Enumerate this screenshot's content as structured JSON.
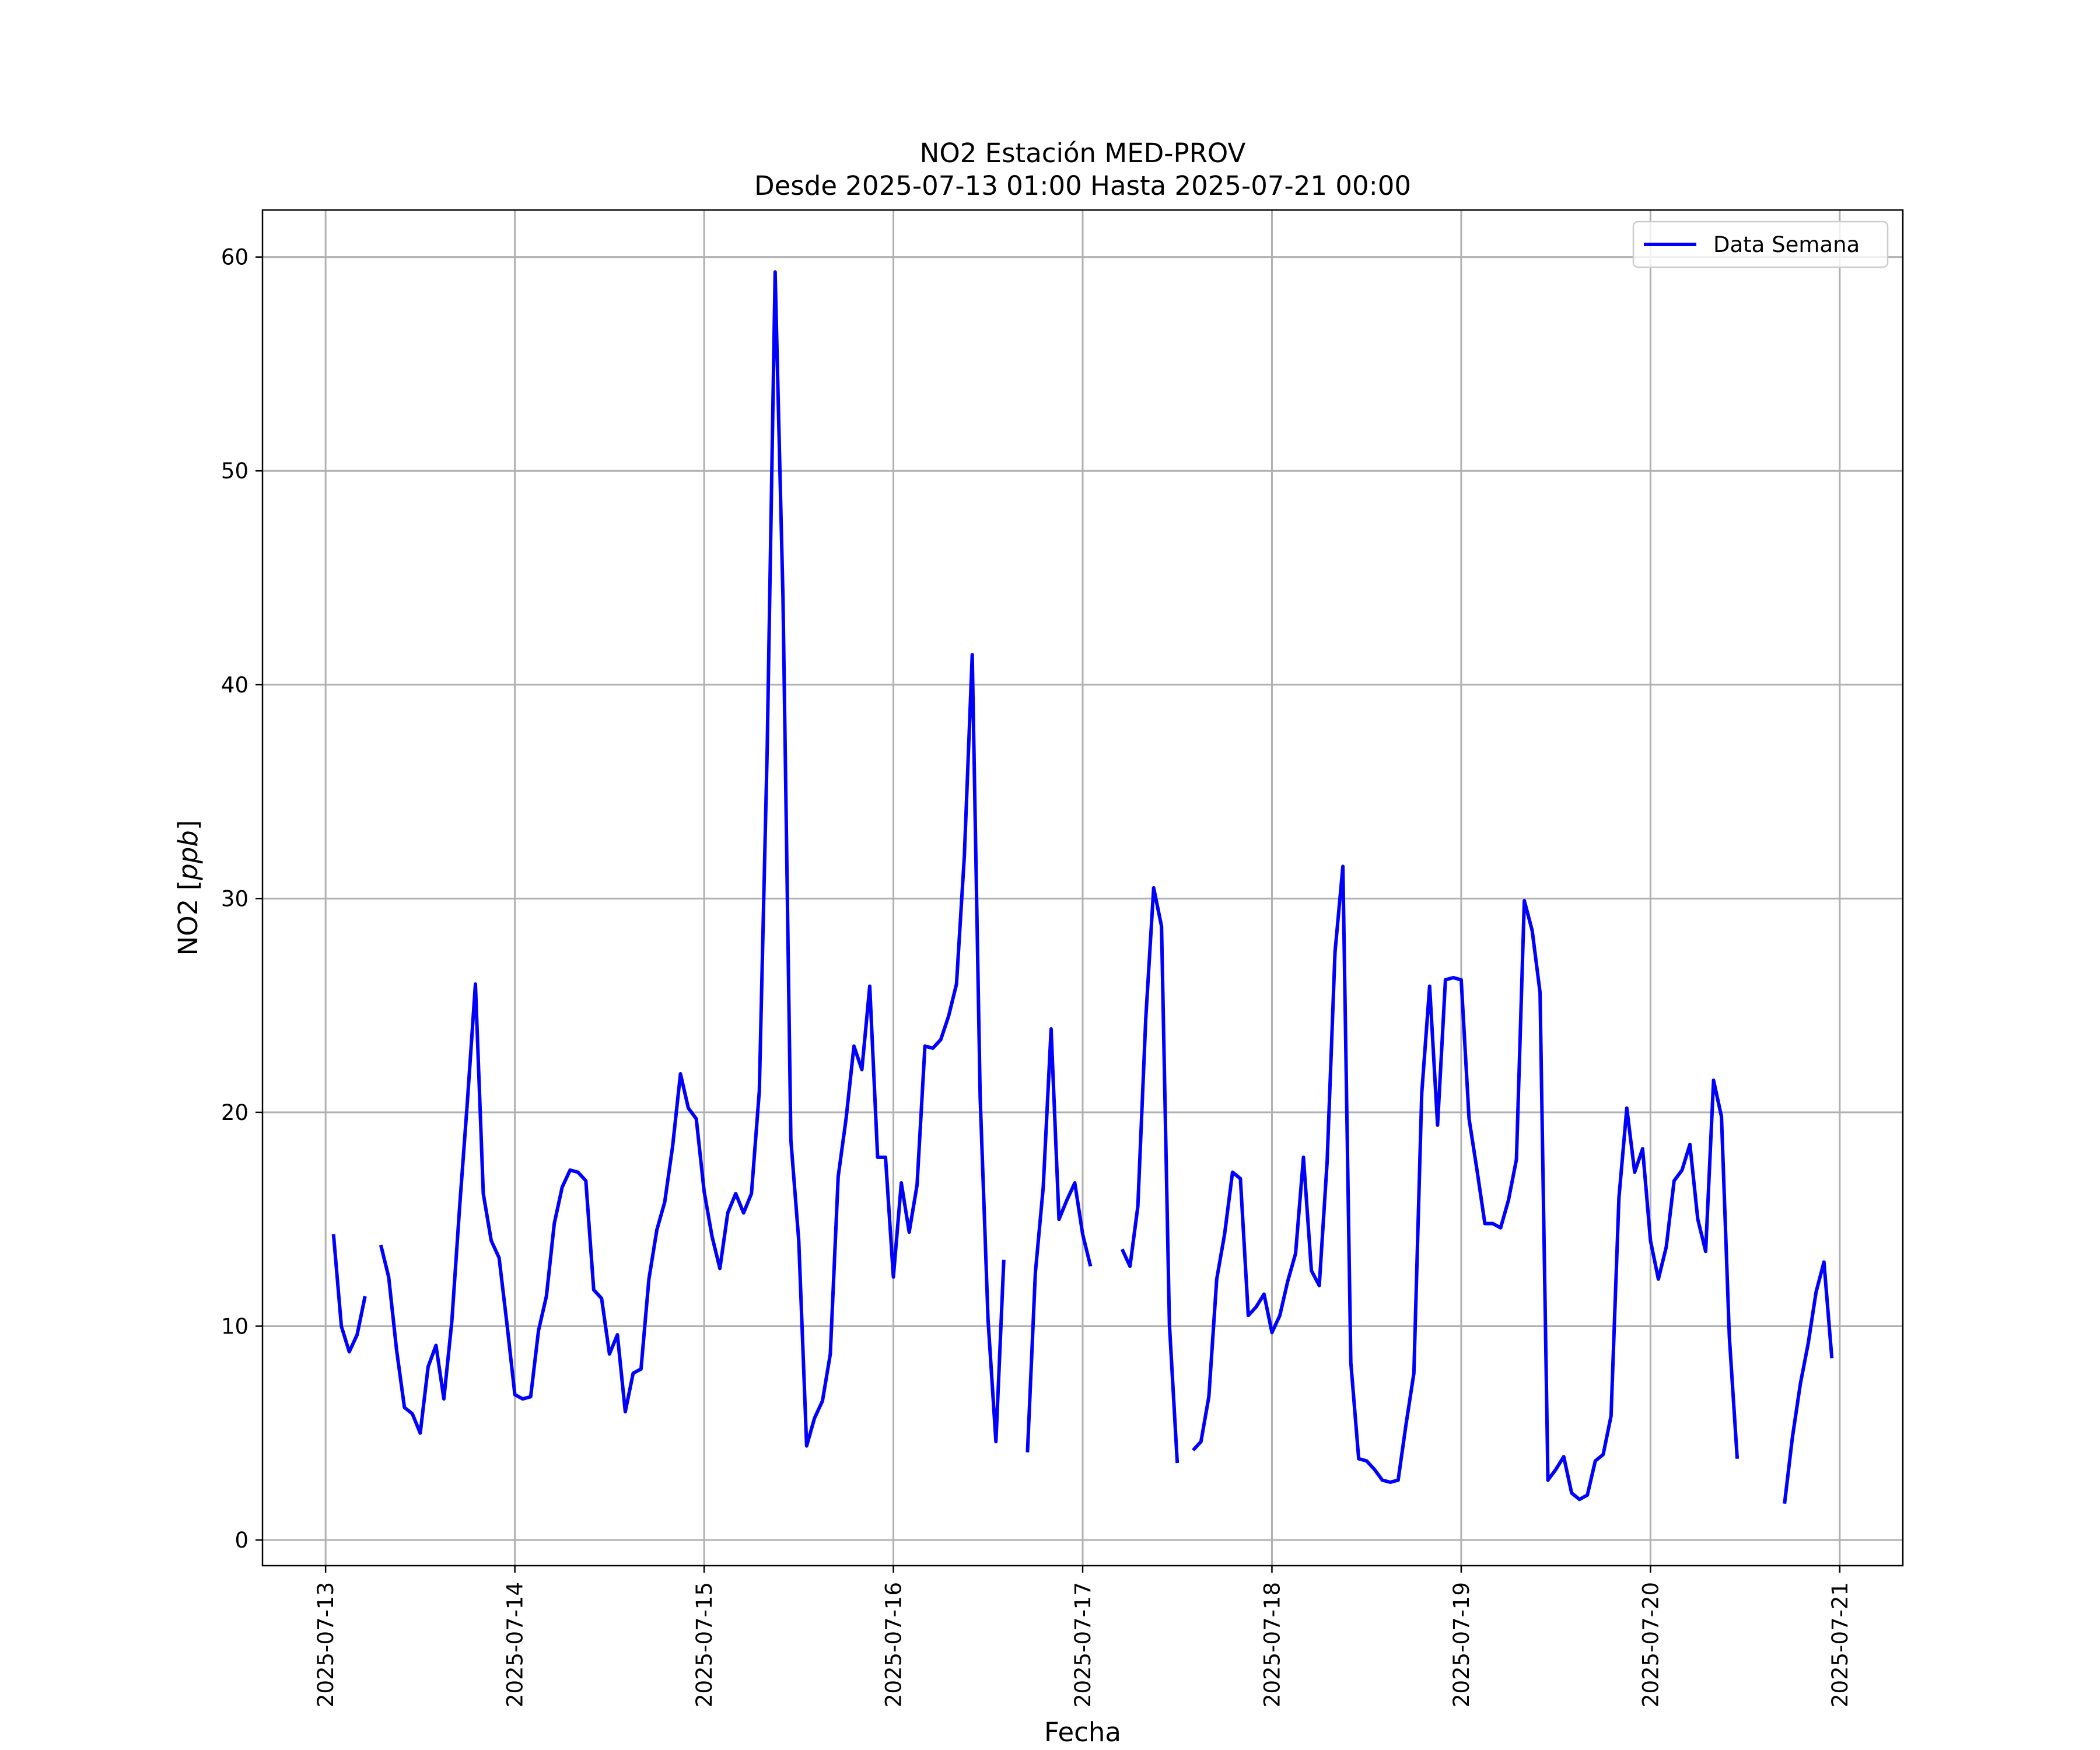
{
  "chart_data": {
    "type": "line",
    "title": "NO2 Estación MED-PROV",
    "subtitle": "Desde 2025-07-13 01:00 Hasta 2025-07-21 00:00",
    "xlabel": "Fecha",
    "ylabel_text": "NO2 [",
    "ylabel_unit": "ppb",
    "ylabel_close": "]",
    "xlim": [
      "2025-07-12 16:00",
      "2025-07-21 08:00"
    ],
    "ylim": [
      -1.2,
      62.2
    ],
    "x_ticks": [
      "2025-07-13",
      "2025-07-14",
      "2025-07-15",
      "2025-07-16",
      "2025-07-17",
      "2025-07-18",
      "2025-07-19",
      "2025-07-20",
      "2025-07-21"
    ],
    "y_ticks": [
      0,
      10,
      20,
      30,
      40,
      50,
      60
    ],
    "grid": true,
    "legend_position": "upper right",
    "series": [
      {
        "name": "Data Semana",
        "color": "#0000ff",
        "points": [
          [
            "2025-07-13 01:00",
            14.3
          ],
          [
            "2025-07-13 02:00",
            10.0
          ],
          [
            "2025-07-13 03:00",
            8.8
          ],
          [
            "2025-07-13 04:00",
            9.6
          ],
          [
            "2025-07-13 05:00",
            11.4
          ],
          [
            "2025-07-13 06:00",
            null
          ],
          [
            "2025-07-13 07:00",
            13.8
          ],
          [
            "2025-07-13 08:00",
            12.3
          ],
          [
            "2025-07-13 09:00",
            8.9
          ],
          [
            "2025-07-13 10:00",
            6.2
          ],
          [
            "2025-07-13 11:00",
            5.9
          ],
          [
            "2025-07-13 12:00",
            5.0
          ],
          [
            "2025-07-13 13:00",
            8.1
          ],
          [
            "2025-07-13 14:00",
            9.1
          ],
          [
            "2025-07-13 15:00",
            6.6
          ],
          [
            "2025-07-13 16:00",
            10.2
          ],
          [
            "2025-07-13 17:00",
            15.6
          ],
          [
            "2025-07-13 18:00",
            20.6
          ],
          [
            "2025-07-13 19:00",
            26.0
          ],
          [
            "2025-07-13 20:00",
            16.2
          ],
          [
            "2025-07-13 21:00",
            14.0
          ],
          [
            "2025-07-13 22:00",
            13.2
          ],
          [
            "2025-07-13 23:00",
            10.1
          ],
          [
            "2025-07-14 00:00",
            6.8
          ],
          [
            "2025-07-14 01:00",
            6.6
          ],
          [
            "2025-07-14 02:00",
            6.7
          ],
          [
            "2025-07-14 03:00",
            9.8
          ],
          [
            "2025-07-14 04:00",
            11.4
          ],
          [
            "2025-07-14 05:00",
            14.8
          ],
          [
            "2025-07-14 06:00",
            16.5
          ],
          [
            "2025-07-14 07:00",
            17.3
          ],
          [
            "2025-07-14 08:00",
            17.2
          ],
          [
            "2025-07-14 09:00",
            16.8
          ],
          [
            "2025-07-14 10:00",
            11.7
          ],
          [
            "2025-07-14 11:00",
            11.3
          ],
          [
            "2025-07-14 12:00",
            8.7
          ],
          [
            "2025-07-14 13:00",
            9.6
          ],
          [
            "2025-07-14 14:00",
            6.0
          ],
          [
            "2025-07-14 15:00",
            7.8
          ],
          [
            "2025-07-14 16:00",
            8.0
          ],
          [
            "2025-07-14 17:00",
            12.2
          ],
          [
            "2025-07-14 18:00",
            14.5
          ],
          [
            "2025-07-14 19:00",
            15.8
          ],
          [
            "2025-07-14 20:00",
            18.4
          ],
          [
            "2025-07-14 21:00",
            21.8
          ],
          [
            "2025-07-14 22:00",
            20.2
          ],
          [
            "2025-07-14 23:00",
            19.7
          ],
          [
            "2025-07-15 00:00",
            16.3
          ],
          [
            "2025-07-15 01:00",
            14.2
          ],
          [
            "2025-07-15 02:00",
            12.7
          ],
          [
            "2025-07-15 03:00",
            15.3
          ],
          [
            "2025-07-15 04:00",
            16.2
          ],
          [
            "2025-07-15 05:00",
            15.3
          ],
          [
            "2025-07-15 06:00",
            16.2
          ],
          [
            "2025-07-15 07:00",
            21.0
          ],
          [
            "2025-07-15 08:00",
            37.0
          ],
          [
            "2025-07-15 09:00",
            59.3
          ],
          [
            "2025-07-15 10:00",
            44.0
          ],
          [
            "2025-07-15 11:00",
            18.7
          ],
          [
            "2025-07-15 12:00",
            14.0
          ],
          [
            "2025-07-15 13:00",
            4.4
          ],
          [
            "2025-07-15 14:00",
            5.7
          ],
          [
            "2025-07-15 15:00",
            6.5
          ],
          [
            "2025-07-15 16:00",
            8.7
          ],
          [
            "2025-07-15 17:00",
            17.0
          ],
          [
            "2025-07-15 18:00",
            19.7
          ],
          [
            "2025-07-15 19:00",
            23.1
          ],
          [
            "2025-07-15 20:00",
            22.0
          ],
          [
            "2025-07-15 21:00",
            25.9
          ],
          [
            "2025-07-15 22:00",
            17.9
          ],
          [
            "2025-07-15 23:00",
            17.9
          ],
          [
            "2025-07-16 00:00",
            12.3
          ],
          [
            "2025-07-16 01:00",
            16.7
          ],
          [
            "2025-07-16 02:00",
            14.4
          ],
          [
            "2025-07-16 03:00",
            16.6
          ],
          [
            "2025-07-16 04:00",
            23.1
          ],
          [
            "2025-07-16 05:00",
            23.0
          ],
          [
            "2025-07-16 06:00",
            23.4
          ],
          [
            "2025-07-16 07:00",
            24.5
          ],
          [
            "2025-07-16 08:00",
            26.0
          ],
          [
            "2025-07-16 09:00",
            32.0
          ],
          [
            "2025-07-16 10:00",
            41.4
          ],
          [
            "2025-07-16 11:00",
            20.7
          ],
          [
            "2025-07-16 12:00",
            10.3
          ],
          [
            "2025-07-16 13:00",
            4.6
          ],
          [
            "2025-07-16 14:00",
            13.1
          ],
          [
            "2025-07-16 15:00",
            null
          ],
          [
            "2025-07-16 16:00",
            null
          ],
          [
            "2025-07-16 17:00",
            4.1
          ],
          [
            "2025-07-16 18:00",
            12.5
          ],
          [
            "2025-07-16 19:00",
            16.5
          ],
          [
            "2025-07-16 20:00",
            23.9
          ],
          [
            "2025-07-16 21:00",
            15.0
          ],
          [
            "2025-07-16 22:00",
            15.9
          ],
          [
            "2025-07-16 23:00",
            16.7
          ],
          [
            "2025-07-17 00:00",
            14.3
          ],
          [
            "2025-07-17 01:00",
            12.8
          ],
          [
            "2025-07-17 02:00",
            null
          ],
          [
            "2025-07-17 03:00",
            null
          ],
          [
            "2025-07-17 04:00",
            null
          ],
          [
            "2025-07-17 05:00",
            13.6
          ],
          [
            "2025-07-17 06:00",
            12.8
          ],
          [
            "2025-07-17 07:00",
            15.6
          ],
          [
            "2025-07-17 08:00",
            24.4
          ],
          [
            "2025-07-17 09:00",
            30.5
          ],
          [
            "2025-07-17 10:00",
            28.7
          ],
          [
            "2025-07-17 11:00",
            10.1
          ],
          [
            "2025-07-17 12:00",
            3.6
          ],
          [
            "2025-07-17 13:00",
            null
          ],
          [
            "2025-07-17 14:00",
            4.2
          ],
          [
            "2025-07-17 15:00",
            4.6
          ],
          [
            "2025-07-17 16:00",
            6.7
          ],
          [
            "2025-07-17 17:00",
            12.2
          ],
          [
            "2025-07-17 18:00",
            14.3
          ],
          [
            "2025-07-17 19:00",
            17.2
          ],
          [
            "2025-07-17 20:00",
            16.9
          ],
          [
            "2025-07-17 21:00",
            10.5
          ],
          [
            "2025-07-17 22:00",
            10.9
          ],
          [
            "2025-07-17 23:00",
            11.5
          ],
          [
            "2025-07-18 00:00",
            9.7
          ],
          [
            "2025-07-18 01:00",
            10.5
          ],
          [
            "2025-07-18 02:00",
            12.1
          ],
          [
            "2025-07-18 03:00",
            13.4
          ],
          [
            "2025-07-18 04:00",
            17.9
          ],
          [
            "2025-07-18 05:00",
            12.6
          ],
          [
            "2025-07-18 06:00",
            11.9
          ],
          [
            "2025-07-18 07:00",
            17.7
          ],
          [
            "2025-07-18 08:00",
            27.5
          ],
          [
            "2025-07-18 09:00",
            31.5
          ],
          [
            "2025-07-18 10:00",
            8.3
          ],
          [
            "2025-07-18 11:00",
            3.8
          ],
          [
            "2025-07-18 12:00",
            3.7
          ],
          [
            "2025-07-18 13:00",
            3.3
          ],
          [
            "2025-07-18 14:00",
            2.8
          ],
          [
            "2025-07-18 15:00",
            2.7
          ],
          [
            "2025-07-18 16:00",
            2.8
          ],
          [
            "2025-07-18 17:00",
            5.4
          ],
          [
            "2025-07-18 18:00",
            7.8
          ],
          [
            "2025-07-18 19:00",
            20.9
          ],
          [
            "2025-07-18 20:00",
            25.9
          ],
          [
            "2025-07-18 21:00",
            19.4
          ],
          [
            "2025-07-18 22:00",
            26.2
          ],
          [
            "2025-07-18 23:00",
            26.3
          ],
          [
            "2025-07-19 00:00",
            26.2
          ],
          [
            "2025-07-19 01:00",
            19.7
          ],
          [
            "2025-07-19 02:00",
            17.3
          ],
          [
            "2025-07-19 03:00",
            14.8
          ],
          [
            "2025-07-19 04:00",
            14.8
          ],
          [
            "2025-07-19 05:00",
            14.6
          ],
          [
            "2025-07-19 06:00",
            15.9
          ],
          [
            "2025-07-19 07:00",
            17.8
          ],
          [
            "2025-07-19 08:00",
            29.9
          ],
          [
            "2025-07-19 09:00",
            28.5
          ],
          [
            "2025-07-19 10:00",
            25.6
          ],
          [
            "2025-07-19 11:00",
            2.8
          ],
          [
            "2025-07-19 12:00",
            3.3
          ],
          [
            "2025-07-19 13:00",
            3.9
          ],
          [
            "2025-07-19 14:00",
            2.2
          ],
          [
            "2025-07-19 15:00",
            1.9
          ],
          [
            "2025-07-19 16:00",
            2.1
          ],
          [
            "2025-07-19 17:00",
            3.7
          ],
          [
            "2025-07-19 18:00",
            4.0
          ],
          [
            "2025-07-19 19:00",
            5.8
          ],
          [
            "2025-07-19 20:00",
            16.0
          ],
          [
            "2025-07-19 21:00",
            20.2
          ],
          [
            "2025-07-19 22:00",
            17.2
          ],
          [
            "2025-07-19 23:00",
            18.3
          ],
          [
            "2025-07-20 00:00",
            14.0
          ],
          [
            "2025-07-20 01:00",
            12.2
          ],
          [
            "2025-07-20 02:00",
            13.7
          ],
          [
            "2025-07-20 03:00",
            16.8
          ],
          [
            "2025-07-20 04:00",
            17.3
          ],
          [
            "2025-07-20 05:00",
            18.5
          ],
          [
            "2025-07-20 06:00",
            15.0
          ],
          [
            "2025-07-20 07:00",
            13.5
          ],
          [
            "2025-07-20 08:00",
            21.5
          ],
          [
            "2025-07-20 09:00",
            19.8
          ],
          [
            "2025-07-20 10:00",
            9.5
          ],
          [
            "2025-07-20 11:00",
            3.8
          ],
          [
            "2025-07-20 12:00",
            null
          ],
          [
            "2025-07-20 13:00",
            null
          ],
          [
            "2025-07-20 14:00",
            null
          ],
          [
            "2025-07-20 15:00",
            null
          ],
          [
            "2025-07-20 16:00",
            null
          ],
          [
            "2025-07-20 17:00",
            1.7
          ],
          [
            "2025-07-20 18:00",
            4.8
          ],
          [
            "2025-07-20 19:00",
            7.3
          ],
          [
            "2025-07-20 20:00",
            9.2
          ],
          [
            "2025-07-20 21:00",
            11.6
          ],
          [
            "2025-07-20 22:00",
            13.0
          ],
          [
            "2025-07-20 23:00",
            8.5
          ]
        ]
      }
    ]
  }
}
